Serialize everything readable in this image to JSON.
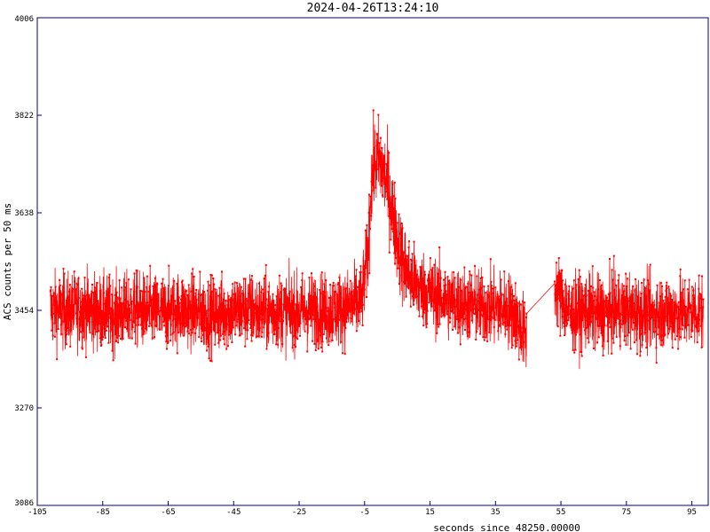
{
  "chart_data": {
    "type": "line",
    "title": "2024-04-26T13:24:10",
    "xlabel": "seconds since 48250.00000",
    "ylabel": "ACS counts per 50 ms",
    "xlim": [
      -105,
      100
    ],
    "ylim": [
      3086,
      4006
    ],
    "x_ticks": [
      -105,
      -85,
      -65,
      -45,
      -25,
      -5,
      15,
      35,
      55,
      75,
      95
    ],
    "y_ticks": [
      3086,
      3270,
      3454,
      3638,
      3822,
      4006
    ],
    "grid": false,
    "colors": {
      "series": "#ff0000",
      "frame": "#000080"
    },
    "series": [
      {
        "x": [
          -101,
          -96,
          -91,
          -86,
          -81,
          -76,
          -71,
          -66,
          -61,
          -56,
          -51,
          -46,
          -41,
          -36,
          -31,
          -26,
          -21,
          -16,
          -11,
          -6,
          -4,
          -3,
          -2,
          -1,
          0,
          1,
          2,
          3,
          4,
          5,
          6,
          7,
          9,
          11,
          14,
          17,
          20,
          25,
          30,
          35,
          40,
          44.5,
          53,
          58,
          63,
          68,
          73,
          78,
          83,
          88,
          93,
          98.5
        ],
        "y": [
          3455,
          3452,
          3458,
          3450,
          3447,
          3455,
          3452,
          3449,
          3456,
          3450,
          3445,
          3453,
          3456,
          3448,
          3452,
          3450,
          3455,
          3452,
          3458,
          3470,
          3560,
          3690,
          3730,
          3735,
          3728,
          3712,
          3690,
          3660,
          3620,
          3590,
          3560,
          3540,
          3515,
          3500,
          3490,
          3480,
          3472,
          3465,
          3460,
          3458,
          3455,
          3400,
          3500,
          3445,
          3452,
          3448,
          3455,
          3450,
          3447,
          3452,
          3449,
          3455
        ],
        "spread": 70
      }
    ]
  }
}
